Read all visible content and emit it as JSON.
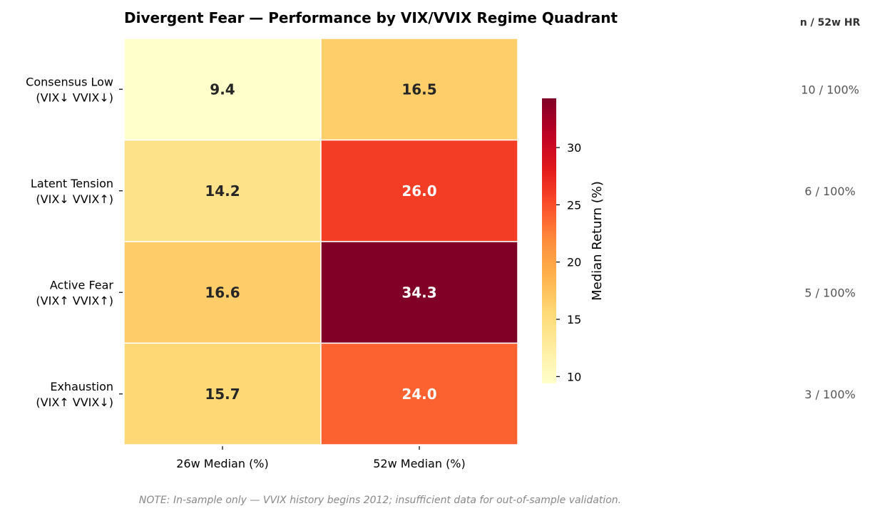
{
  "chart_data": {
    "type": "heatmap",
    "title": "Divergent Fear — Performance by VIX/VVIX Regime Quadrant",
    "rows": [
      [
        "Consensus Low",
        "(VIX↓ VVIX↓)"
      ],
      [
        "Latent Tension",
        "(VIX↓ VVIX↑)"
      ],
      [
        "Active Fear",
        "(VIX↑ VVIX↑)"
      ],
      [
        "Exhaustion",
        "(VIX↑ VVIX↓)"
      ]
    ],
    "columns": [
      "26w Median (%)",
      "52w Median (%)"
    ],
    "values": [
      [
        9.4,
        16.5
      ],
      [
        14.2,
        26.0
      ],
      [
        16.6,
        34.3
      ],
      [
        15.7,
        24.0
      ]
    ],
    "value_labels": [
      [
        "9.4",
        "16.5"
      ],
      [
        "14.2",
        "26.0"
      ],
      [
        "16.6",
        "34.3"
      ],
      [
        "15.7",
        "24.0"
      ]
    ],
    "colormap": "YlOrRd",
    "vmin": 9.4,
    "vmax": 34.3,
    "colorbar": {
      "label": "Median Return (%)",
      "ticks": [
        10,
        15,
        20,
        25,
        30
      ]
    },
    "side_table": {
      "header": "n  /  52w HR",
      "values": [
        "10  /  100%",
        "6  /  100%",
        "5  /  100%",
        "3  /  100%"
      ]
    }
  },
  "note": "NOTE: In-sample only — VVIX history begins 2012; insufficient data for out-of-sample validation."
}
